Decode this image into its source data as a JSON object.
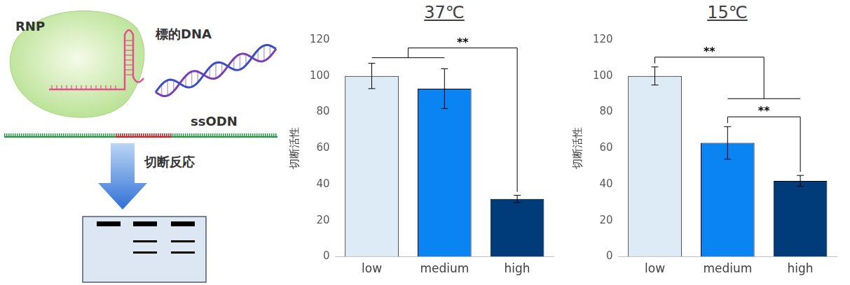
{
  "diagram": {
    "labels": {
      "complex": "RNP",
      "target": "標的DNA",
      "donor": "ssODN",
      "reaction": "切断反応"
    }
  },
  "chart_data": [
    {
      "type": "bar",
      "title": "37℃",
      "ylabel": "切断活性",
      "categories": [
        "low",
        "medium",
        "high"
      ],
      "values": [
        100,
        93,
        32
      ],
      "errors": [
        7,
        11,
        2
      ],
      "colors": [
        "#ddebf7",
        "#0b84f3",
        "#003b7a"
      ],
      "ylim": [
        0,
        120
      ],
      "yticks": [
        0,
        20,
        40,
        60,
        80,
        100,
        120
      ],
      "grid": false,
      "significance": [
        {
          "from": [
            "low",
            "medium"
          ],
          "to": [
            "high"
          ],
          "label": "**"
        }
      ]
    },
    {
      "type": "bar",
      "title": "15℃",
      "ylabel": "切断活性",
      "categories": [
        "low",
        "medium",
        "high"
      ],
      "values": [
        100,
        63,
        42
      ],
      "errors": [
        5,
        9,
        3
      ],
      "colors": [
        "#ddebf7",
        "#0b84f3",
        "#003b7a"
      ],
      "ylim": [
        0,
        120
      ],
      "yticks": [
        0,
        20,
        40,
        60,
        80,
        100,
        120
      ],
      "grid": false,
      "significance": [
        {
          "from": [
            "low"
          ],
          "to": [
            "medium",
            "high"
          ],
          "label": "**"
        },
        {
          "from": [
            "medium"
          ],
          "to": [
            "high"
          ],
          "label": "**"
        }
      ]
    }
  ]
}
